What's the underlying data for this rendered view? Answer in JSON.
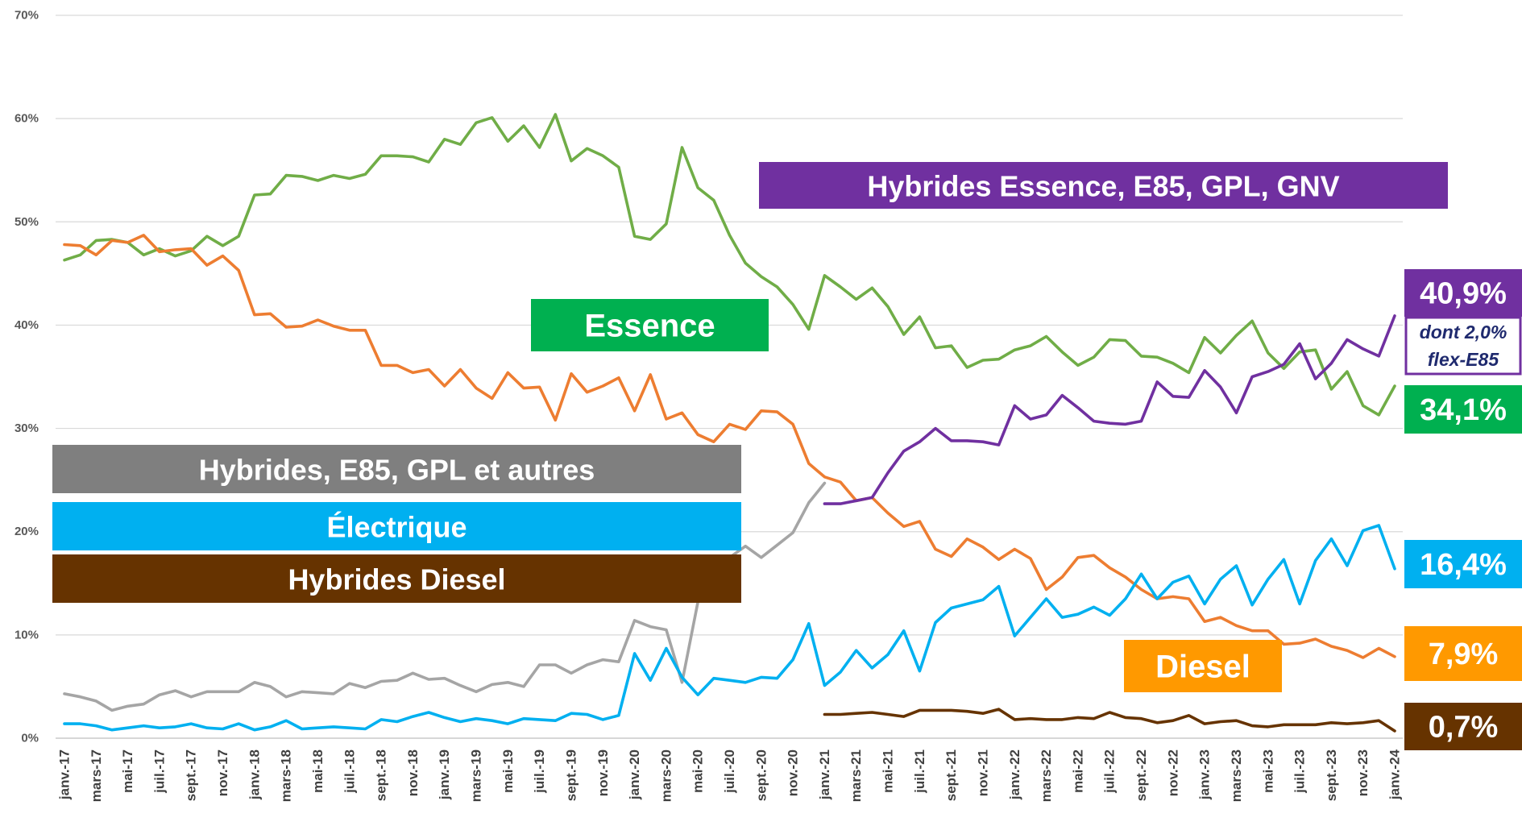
{
  "chart_data": {
    "type": "line",
    "categories": [
      "janv.-17",
      null,
      "mars-17",
      null,
      "mai-17",
      null,
      "juil.-17",
      null,
      "sept.-17",
      null,
      "nov.-17",
      null,
      "janv.-18",
      null,
      "mars-18",
      null,
      "mai-18",
      null,
      "juil.-18",
      null,
      "sept.-18",
      null,
      "nov.-18",
      null,
      "janv.-19",
      null,
      "mars-19",
      null,
      "mai-19",
      null,
      "juil.-19",
      null,
      "sept.-19",
      null,
      "nov.-19",
      null,
      "janv.-20",
      null,
      "mars-20",
      null,
      "mai-20",
      null,
      "juil.-20",
      null,
      "sept.-20",
      null,
      "nov.-20",
      null,
      "janv.-21",
      null,
      "mars-21",
      null,
      "mai-21",
      null,
      "juil.-21",
      null,
      "sept.-21",
      null,
      "nov.-21",
      null,
      "janv.-22",
      null,
      "mars-22",
      null,
      "mai-22",
      null,
      "juil.-22",
      null,
      "sept.-22",
      null,
      "nov.-22",
      null,
      "janv.-23",
      null,
      "mars-23",
      null,
      "mai-23",
      null,
      "juil.-23",
      null,
      "sept.-23",
      null,
      "nov.-23",
      null,
      "janv.-24"
    ],
    "ylim": [
      0,
      70
    ],
    "yticks": [
      {
        "value": 0,
        "label": "0%"
      },
      {
        "value": 10,
        "label": "10%"
      },
      {
        "value": 20,
        "label": "20%"
      },
      {
        "value": 30,
        "label": "30%"
      },
      {
        "value": 40,
        "label": "40%"
      },
      {
        "value": 50,
        "label": "50%"
      },
      {
        "value": 60,
        "label": "60%"
      },
      {
        "value": 70,
        "label": "70%"
      }
    ],
    "grid": true,
    "note": [
      "dont 2,0%",
      "flex-E85"
    ],
    "series": [
      {
        "name": "Essence",
        "color": "#70ad47",
        "label_color": "#00b050",
        "values": [
          46.3,
          46.8,
          48.2,
          48.3,
          48.0,
          46.8,
          47.4,
          46.7,
          47.2,
          48.6,
          47.7,
          48.6,
          52.6,
          52.7,
          54.5,
          54.4,
          54.0,
          54.5,
          54.2,
          54.6,
          56.4,
          56.4,
          56.3,
          55.8,
          58.0,
          57.5,
          59.6,
          60.1,
          57.8,
          59.3,
          57.2,
          60.4,
          55.9,
          57.1,
          56.4,
          55.3,
          48.6,
          48.3,
          49.8,
          57.2,
          53.3,
          52.1,
          48.7,
          46.0,
          44.7,
          43.7,
          42.0,
          39.6,
          44.8,
          43.7,
          42.5,
          43.6,
          41.8,
          39.1,
          40.8,
          37.8,
          38.0,
          35.9,
          36.6,
          36.7,
          37.6,
          38.0,
          38.9,
          37.4,
          36.1,
          36.9,
          38.6,
          38.5,
          37.0,
          36.9,
          36.3,
          35.4,
          38.8,
          37.3,
          39.0,
          40.4,
          37.3,
          35.8,
          37.4,
          37.6,
          33.8,
          35.5,
          32.2,
          31.3,
          34.1
        ],
        "value_labels": [
          null,
          null,
          null,
          null,
          null,
          null,
          null,
          null,
          null,
          null,
          null,
          null,
          null,
          null,
          null,
          null,
          null,
          null,
          null,
          null,
          null,
          null,
          null,
          null,
          null,
          null,
          null,
          null,
          null,
          null,
          null,
          null,
          null,
          null,
          null,
          null,
          null,
          null,
          null,
          null,
          null,
          null,
          null,
          null,
          null,
          null,
          null,
          null,
          null,
          null,
          null,
          null,
          null,
          null,
          null,
          null,
          null,
          null,
          null,
          null,
          null,
          null,
          null,
          null,
          null,
          null,
          null,
          null,
          null,
          null,
          null,
          null,
          null,
          null,
          null,
          null,
          null,
          null,
          null,
          null,
          null,
          null,
          null,
          null,
          "34,1%"
        ]
      },
      {
        "name": "Diesel",
        "color": "#ed7d31",
        "label_color": "#ff9900",
        "values": [
          47.8,
          47.7,
          46.8,
          48.2,
          48.0,
          48.7,
          47.1,
          47.3,
          47.4,
          45.8,
          46.7,
          45.3,
          41.0,
          41.1,
          39.8,
          39.9,
          40.5,
          39.9,
          39.5,
          39.5,
          36.1,
          36.1,
          35.4,
          35.7,
          34.1,
          35.7,
          33.9,
          32.9,
          35.4,
          33.9,
          34.0,
          30.8,
          35.3,
          33.5,
          34.1,
          34.9,
          31.7,
          35.2,
          30.9,
          31.5,
          29.4,
          28.7,
          30.4,
          29.9,
          31.7,
          31.6,
          30.4,
          26.6,
          25.3,
          24.8,
          23.0,
          23.3,
          21.8,
          20.5,
          21.0,
          18.3,
          17.6,
          19.3,
          18.5,
          17.3,
          18.3,
          17.4,
          14.4,
          15.6,
          17.5,
          17.7,
          16.5,
          15.6,
          14.4,
          13.5,
          13.7,
          13.5,
          11.3,
          11.7,
          10.9,
          10.4,
          10.4,
          9.1,
          9.2,
          9.6,
          8.9,
          8.5,
          7.8,
          8.7,
          7.9
        ],
        "value_labels": [
          null,
          null,
          null,
          null,
          null,
          null,
          null,
          null,
          null,
          null,
          null,
          null,
          null,
          null,
          null,
          null,
          null,
          null,
          null,
          null,
          null,
          null,
          null,
          null,
          null,
          null,
          null,
          null,
          null,
          null,
          null,
          null,
          null,
          null,
          null,
          null,
          null,
          null,
          null,
          null,
          null,
          null,
          null,
          null,
          null,
          null,
          null,
          null,
          null,
          null,
          null,
          null,
          null,
          null,
          null,
          null,
          null,
          null,
          null,
          null,
          null,
          null,
          null,
          null,
          null,
          null,
          null,
          null,
          null,
          null,
          null,
          null,
          null,
          null,
          null,
          null,
          null,
          null,
          null,
          null,
          null,
          null,
          null,
          null,
          "7,9%"
        ]
      },
      {
        "name": "Hybrides, E85, GPL et autres",
        "color": "#a5a5a5",
        "label_color": "#7f7f7f",
        "values": [
          4.3,
          4.0,
          3.6,
          2.7,
          3.1,
          3.3,
          4.2,
          4.6,
          4.0,
          4.5,
          4.5,
          4.5,
          5.4,
          5.0,
          4.0,
          4.5,
          4.4,
          4.3,
          5.3,
          4.9,
          5.5,
          5.6,
          6.3,
          5.7,
          5.8,
          5.1,
          4.5,
          5.2,
          5.4,
          5.0,
          7.1,
          7.1,
          6.3,
          7.1,
          7.6,
          7.4,
          11.4,
          10.8,
          10.5,
          5.4,
          13.2,
          16.0,
          17.5,
          18.6,
          17.5,
          18.7,
          19.9,
          22.8,
          24.7,
          null,
          null,
          null,
          null,
          null,
          null,
          null,
          null,
          null,
          null,
          null,
          null,
          null,
          null,
          null,
          null,
          null,
          null,
          null,
          null,
          null,
          null,
          null,
          null,
          null,
          null,
          null,
          null,
          null,
          null,
          null,
          null,
          null,
          null,
          null,
          null
        ]
      },
      {
        "name": "Électrique",
        "color": "#00b0f0",
        "label_color": "#00b0f0",
        "values": [
          1.4,
          1.4,
          1.2,
          0.8,
          1.0,
          1.2,
          1.0,
          1.1,
          1.4,
          1.0,
          0.9,
          1.4,
          0.8,
          1.1,
          1.7,
          0.9,
          1.0,
          1.1,
          1.0,
          0.9,
          1.8,
          1.6,
          2.1,
          2.5,
          2.0,
          1.6,
          1.9,
          1.7,
          1.4,
          1.9,
          1.8,
          1.7,
          2.4,
          2.3,
          1.8,
          2.2,
          8.2,
          5.6,
          8.7,
          5.9,
          4.2,
          5.8,
          5.6,
          5.4,
          5.9,
          5.8,
          7.6,
          11.1,
          5.1,
          6.4,
          8.5,
          6.8,
          8.1,
          10.4,
          6.5,
          11.2,
          12.6,
          13.0,
          13.4,
          14.7,
          9.9,
          11.7,
          13.5,
          11.7,
          12.0,
          12.7,
          11.9,
          13.5,
          15.9,
          13.5,
          15.1,
          15.7,
          13.0,
          15.4,
          16.7,
          12.9,
          15.4,
          17.3,
          13.0,
          17.2,
          19.3,
          16.7,
          20.1,
          20.6,
          16.4
        ],
        "value_labels": [
          null,
          null,
          null,
          null,
          null,
          null,
          null,
          null,
          null,
          null,
          null,
          null,
          null,
          null,
          null,
          null,
          null,
          null,
          null,
          null,
          null,
          null,
          null,
          null,
          null,
          null,
          null,
          null,
          null,
          null,
          null,
          null,
          null,
          null,
          null,
          null,
          null,
          null,
          null,
          null,
          null,
          null,
          null,
          null,
          null,
          null,
          null,
          null,
          null,
          null,
          null,
          null,
          null,
          null,
          null,
          null,
          null,
          null,
          null,
          null,
          null,
          null,
          null,
          null,
          null,
          null,
          null,
          null,
          null,
          null,
          null,
          null,
          null,
          null,
          null,
          null,
          null,
          null,
          null,
          null,
          null,
          null,
          null,
          null,
          "16,4%"
        ]
      },
      {
        "name": "Hybrides Essence, E85, GPL, GNV",
        "color": "#7030a0",
        "label_color": "#7030a0",
        "values": [
          null,
          null,
          null,
          null,
          null,
          null,
          null,
          null,
          null,
          null,
          null,
          null,
          null,
          null,
          null,
          null,
          null,
          null,
          null,
          null,
          null,
          null,
          null,
          null,
          null,
          null,
          null,
          null,
          null,
          null,
          null,
          null,
          null,
          null,
          null,
          null,
          null,
          null,
          null,
          null,
          null,
          null,
          null,
          null,
          null,
          null,
          null,
          null,
          22.7,
          22.7,
          23.0,
          23.3,
          25.7,
          27.8,
          28.7,
          30.0,
          28.8,
          28.8,
          28.7,
          28.4,
          32.2,
          30.9,
          31.3,
          33.2,
          32.0,
          30.7,
          30.5,
          30.4,
          30.7,
          34.5,
          33.1,
          33.0,
          35.6,
          34.0,
          31.5,
          35.0,
          35.5,
          36.2,
          38.2,
          34.8,
          36.3,
          38.6,
          37.7,
          37.0,
          40.9
        ],
        "value_labels": [
          null,
          null,
          null,
          null,
          null,
          null,
          null,
          null,
          null,
          null,
          null,
          null,
          null,
          null,
          null,
          null,
          null,
          null,
          null,
          null,
          null,
          null,
          null,
          null,
          null,
          null,
          null,
          null,
          null,
          null,
          null,
          null,
          null,
          null,
          null,
          null,
          null,
          null,
          null,
          null,
          null,
          null,
          null,
          null,
          null,
          null,
          null,
          null,
          null,
          null,
          null,
          null,
          null,
          null,
          null,
          null,
          null,
          null,
          null,
          null,
          null,
          null,
          null,
          null,
          null,
          null,
          null,
          null,
          null,
          null,
          null,
          null,
          null,
          null,
          null,
          null,
          null,
          null,
          null,
          null,
          null,
          null,
          null,
          null,
          "40,9%"
        ]
      },
      {
        "name": "Hybrides Diesel",
        "color": "#663300",
        "label_color": "#663300",
        "values": [
          null,
          null,
          null,
          null,
          null,
          null,
          null,
          null,
          null,
          null,
          null,
          null,
          null,
          null,
          null,
          null,
          null,
          null,
          null,
          null,
          null,
          null,
          null,
          null,
          null,
          null,
          null,
          null,
          null,
          null,
          null,
          null,
          null,
          null,
          null,
          null,
          null,
          null,
          null,
          null,
          null,
          null,
          null,
          null,
          null,
          null,
          null,
          null,
          2.3,
          2.3,
          2.4,
          2.5,
          2.3,
          2.1,
          2.7,
          2.7,
          2.7,
          2.6,
          2.4,
          2.8,
          1.8,
          1.9,
          1.8,
          1.8,
          2.0,
          1.9,
          2.5,
          2.0,
          1.9,
          1.5,
          1.7,
          2.2,
          1.4,
          1.6,
          1.7,
          1.2,
          1.1,
          1.3,
          1.3,
          1.3,
          1.5,
          1.4,
          1.5,
          1.7,
          0.7
        ],
        "value_labels": [
          null,
          null,
          null,
          null,
          null,
          null,
          null,
          null,
          null,
          null,
          null,
          null,
          null,
          null,
          null,
          null,
          null,
          null,
          null,
          null,
          null,
          null,
          null,
          null,
          null,
          null,
          null,
          null,
          null,
          null,
          null,
          null,
          null,
          null,
          null,
          null,
          null,
          null,
          null,
          null,
          null,
          null,
          null,
          null,
          null,
          null,
          null,
          null,
          null,
          null,
          null,
          null,
          null,
          null,
          null,
          null,
          null,
          null,
          null,
          null,
          null,
          null,
          null,
          null,
          null,
          null,
          null,
          null,
          null,
          null,
          null,
          null,
          null,
          null,
          null,
          null,
          null,
          null,
          null,
          null,
          null,
          null,
          null,
          null,
          "0,7%"
        ]
      }
    ]
  }
}
